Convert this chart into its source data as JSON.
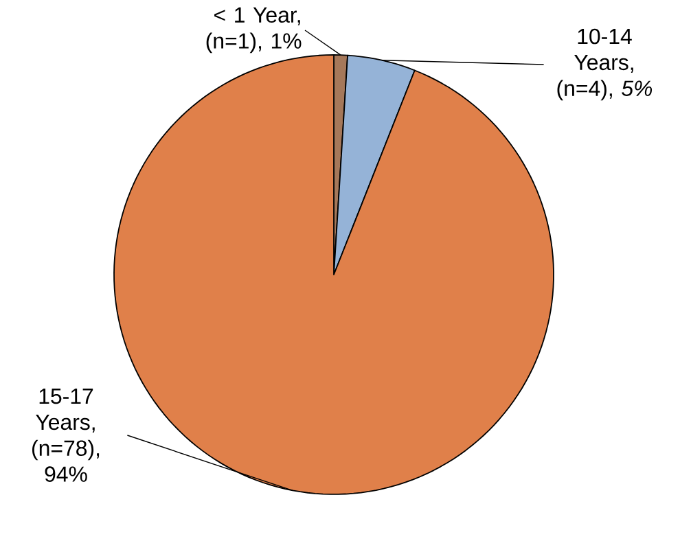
{
  "chart_data": {
    "type": "pie",
    "categories": [
      "< 1 Year, (n=1), 1%",
      "10-14 Years, (n=4), *5%*",
      "15-17 Years, (n=78), 94%"
    ],
    "values": [
      1,
      5,
      94
    ],
    "colors": [
      "#a5785a",
      "#95b3d7",
      "#e0804a"
    ]
  }
}
